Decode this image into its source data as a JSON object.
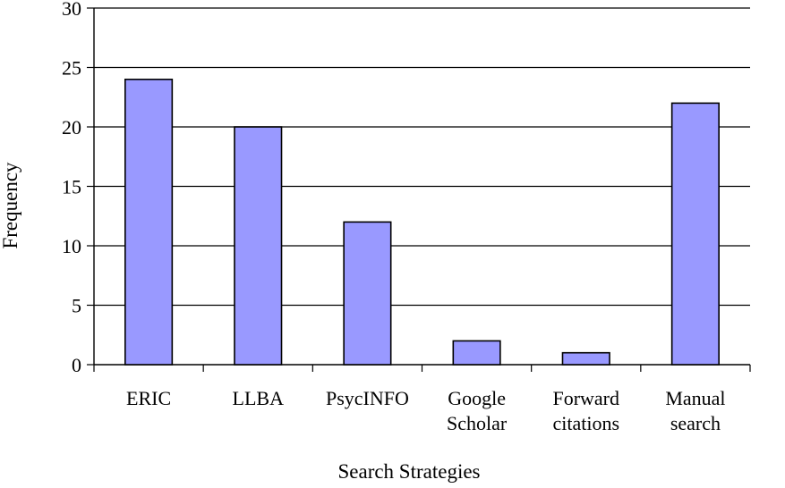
{
  "chart_data": {
    "type": "bar",
    "title": "",
    "xlabel": "Search Strategies",
    "ylabel": "Frequency",
    "categories": [
      [
        "ERIC"
      ],
      [
        "LLBA"
      ],
      [
        "PsycINFO"
      ],
      [
        "Google",
        "Scholar"
      ],
      [
        "Forward",
        "citations"
      ],
      [
        "Manual",
        "search"
      ]
    ],
    "values": [
      24,
      20,
      12,
      2,
      1,
      22
    ],
    "ylim": [
      0,
      30
    ],
    "yticks": [
      "0",
      "5",
      "10",
      "15",
      "20",
      "25",
      "30"
    ],
    "ytick_values": [
      0,
      5,
      10,
      15,
      20,
      25,
      30
    ],
    "grid": true,
    "legend": "none",
    "bar_color": "#9999ff",
    "bar_edge_color": "#000000"
  }
}
